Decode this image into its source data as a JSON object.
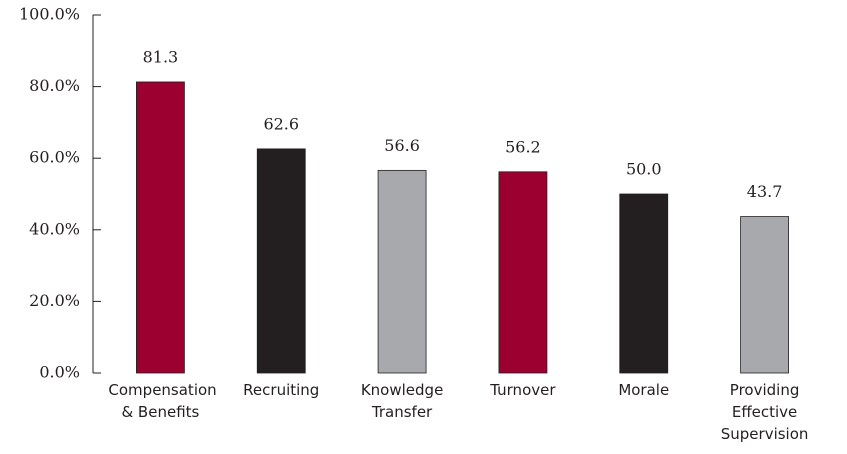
{
  "chart_data": {
    "type": "bar",
    "categories": [
      "Compensation & Benefits",
      "Recruiting",
      "Knowledge Transfer",
      "Turnover",
      "Morale",
      "Providing Effective Supervision"
    ],
    "values": [
      81.3,
      62.6,
      56.6,
      56.2,
      50.0,
      43.7
    ],
    "value_labels": [
      "81.3",
      "62.6",
      "56.6",
      "56.2",
      "50.0",
      "43.7"
    ],
    "colors": [
      "#9b0030",
      "#231f20",
      "#a7a9ac",
      "#9b0030",
      "#231f20",
      "#a7a9ac"
    ],
    "ylim": [
      0,
      100
    ],
    "yticks": [
      {
        "value": 0,
        "label": "0.0%"
      },
      {
        "value": 20,
        "label": "20.0%"
      },
      {
        "value": 40,
        "label": "40.0%"
      },
      {
        "value": 60,
        "label": "60.0%"
      },
      {
        "value": 80,
        "label": "80.0%"
      },
      {
        "value": 100,
        "label": "100.0%"
      }
    ],
    "grid": false
  }
}
